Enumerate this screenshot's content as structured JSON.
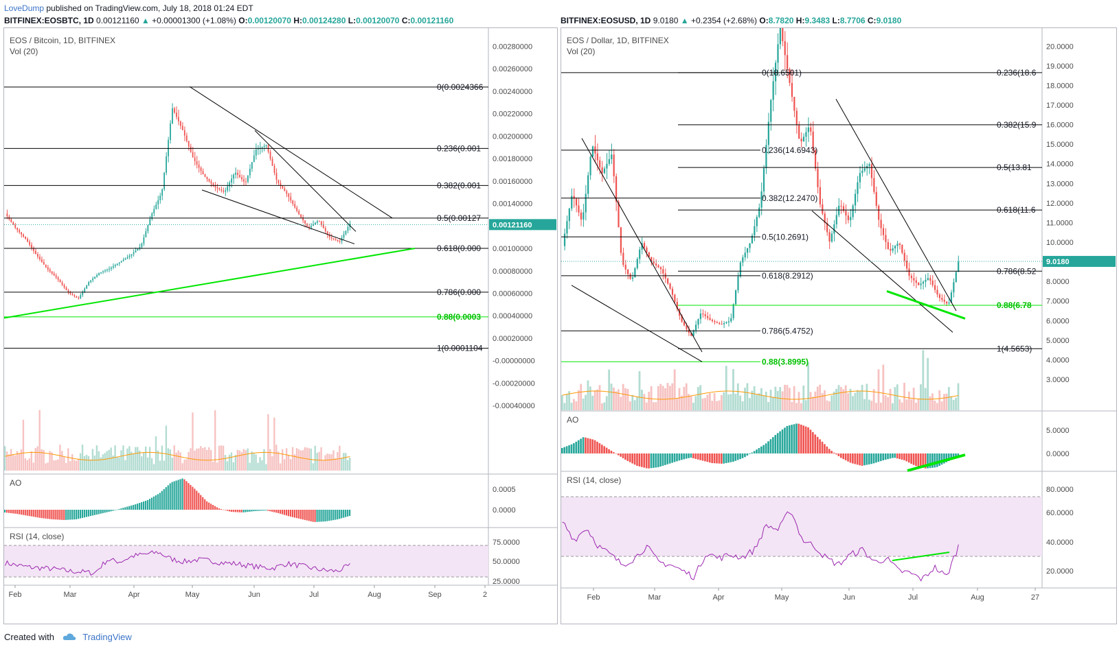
{
  "header": {
    "user": "LoveDump",
    "published_text": "published on TradingView.com, July 18, 2018 01:24 EDT"
  },
  "footer": {
    "created_with": "Created with",
    "brand": "TradingView"
  },
  "colors": {
    "up": "#26a69a",
    "down": "#ef5350",
    "fib_green": "#00e600",
    "rsi_line": "#9c27b0",
    "rsi_band": "#f3e5f5",
    "vol_ma": "#ff9800",
    "price_tag": "#26a69a"
  },
  "chart_data": [
    {
      "id": "eosbtc",
      "type": "candlestick",
      "symbol_line": {
        "symbol": "BITFINEX:EOSBTC, 1D",
        "last": "0.00121160",
        "change": "+0.00001300 (+1.08%)",
        "o_label": "O:",
        "o": "0.00120070",
        "h_label": "H:",
        "h": "0.00124280",
        "l_label": "L:",
        "l": "0.00120070",
        "c_label": "C:",
        "c": "0.00121160"
      },
      "title": "EOS / Bitcoin, 1D, BITFINEX",
      "vol_label": "Vol (20)",
      "price_tag": "0.00121160",
      "y_ticks": [
        "0.00280000",
        "0.00260000",
        "0.00240000",
        "0.00220000",
        "0.00200000",
        "0.00180000",
        "0.00160000",
        "0.00140000",
        "0.00120000",
        "0.00100000",
        "0.00080000",
        "0.00060000",
        "0.00040000",
        "0.00020000",
        "-0.00000000",
        "-0.00020000",
        "-0.00040000"
      ],
      "y_tick_values": [
        0.0028,
        0.0026,
        0.0024,
        0.0022,
        0.002,
        0.0018,
        0.0016,
        0.0014,
        0.0012,
        0.001,
        0.0008,
        0.0006,
        0.0004,
        0.0002,
        0,
        -0.0002,
        -0.0004
      ],
      "x_ticks": [
        "Feb",
        "Mar",
        "Apr",
        "May",
        "Jun",
        "Jul",
        "Aug",
        "Sep",
        "2"
      ],
      "fib_levels": [
        {
          "label": "0(0.0024366",
          "price": 0.0024366,
          "color": "#000"
        },
        {
          "label": "0.236(0.001",
          "price": 0.00189,
          "color": "#000"
        },
        {
          "label": "0.382(0.001",
          "price": 0.00156,
          "color": "#000"
        },
        {
          "label": "0.5(0.00127",
          "price": 0.00127,
          "color": "#000"
        },
        {
          "label": "0.618(0.000",
          "price": 0.001,
          "color": "#000"
        },
        {
          "label": "0.786(0.000",
          "price": 0.00061,
          "color": "#000"
        },
        {
          "label": "0.88(0.0003",
          "price": 0.00039,
          "color": "#00e600"
        },
        {
          "label": "1(0.0001104",
          "price": 0.0001104,
          "color": "#000"
        }
      ],
      "trendlines": [
        {
          "from": [
            "Apr 28",
            0.00244
          ],
          "to": [
            "Jul 20",
            0.00127
          ],
          "color": "#000"
        },
        {
          "from": [
            "Jun 01",
            0.00205
          ],
          "to": [
            "Jul 18",
            0.00115
          ],
          "color": "#000"
        },
        {
          "from": [
            "Apr 27",
            0.00152
          ],
          "to": [
            "Jul 18",
            0.00104
          ],
          "color": "#000"
        },
        {
          "from": [
            "Jan 01",
            0.00038
          ],
          "to": [
            "Aug 21",
            0.001
          ],
          "color": "#00e600"
        }
      ],
      "ao_label": "AO",
      "ao_ticks": [
        "0.0005",
        "0.0000"
      ],
      "rsi_label": "RSI (14, close)",
      "rsi_ticks": [
        "75.0000",
        "50.0000",
        "25.0000"
      ]
    },
    {
      "id": "eosusd",
      "type": "candlestick",
      "symbol_line": {
        "symbol": "BITFINEX:EOSUSD, 1D",
        "last": "9.0180",
        "change": "+0.2354 (+2.68%)",
        "o_label": "O:",
        "o": "8.7820",
        "h_label": "H:",
        "h": "9.3483",
        "l_label": "L:",
        "l": "8.7706",
        "c_label": "C:",
        "c": "9.0180"
      },
      "title": "EOS / Dollar, 1D, BITFINEX",
      "vol_label": "Vol (20)",
      "price_tag": "9.0180",
      "y_ticks": [
        "20.0000",
        "19.0000",
        "18.0000",
        "17.0000",
        "16.0000",
        "15.0000",
        "14.0000",
        "13.0000",
        "12.0000",
        "11.0000",
        "10.0000",
        "9.0000",
        "8.0000",
        "7.0000",
        "6.0000",
        "5.0000",
        "4.0000",
        "3.0000"
      ],
      "y_tick_values": [
        20,
        19,
        18,
        17,
        16,
        15,
        14,
        13,
        12,
        11,
        10,
        9,
        8,
        7,
        6,
        5,
        4,
        3
      ],
      "x_ticks": [
        "Feb",
        "Mar",
        "Apr",
        "May",
        "Jun",
        "Jul",
        "Aug",
        "27"
      ],
      "fib_levels_left": [
        {
          "label": "0(18.6501)",
          "price": 18.6501,
          "color": "#000"
        },
        {
          "label": "0.236(14.6943)",
          "price": 14.6943,
          "color": "#000"
        },
        {
          "label": "0.382(12.2470)",
          "price": 12.247,
          "color": "#000"
        },
        {
          "label": "0.5(10.2691)",
          "price": 10.2691,
          "color": "#000"
        },
        {
          "label": "0.618(8.2912)",
          "price": 8.2912,
          "color": "#000"
        },
        {
          "label": "0.786(5.4752)",
          "price": 5.4752,
          "color": "#000"
        },
        {
          "label": "0.88(3.8995)",
          "price": 3.8995,
          "color": "#00e600"
        }
      ],
      "fib_levels_right": [
        {
          "label": "0.236(18.6",
          "price": 18.65,
          "color": "#000"
        },
        {
          "label": "0.382(15.9",
          "price": 15.99,
          "color": "#000"
        },
        {
          "label": "0.5(13.81",
          "price": 13.81,
          "color": "#000"
        },
        {
          "label": "0.618(11.6",
          "price": 11.64,
          "color": "#000"
        },
        {
          "label": "0.786(8.52",
          "price": 8.52,
          "color": "#000"
        },
        {
          "label": "0.88(6.78",
          "price": 6.78,
          "color": "#00e600"
        },
        {
          "label": "1(4.5653)",
          "price": 4.5653,
          "color": "#000"
        }
      ],
      "ao_label": "AO",
      "ao_ticks": [
        "5.0000",
        "0.0000"
      ],
      "rsi_label": "RSI (14, close)",
      "rsi_ticks": [
        "80.0000",
        "60.0000",
        "40.0000",
        "20.0000"
      ]
    }
  ]
}
